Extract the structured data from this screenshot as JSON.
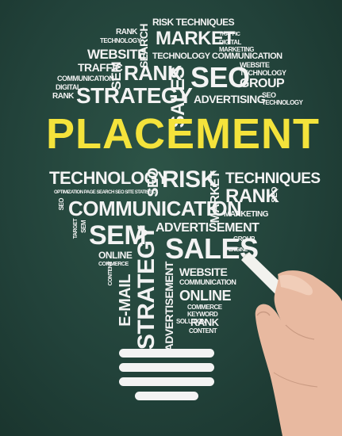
{
  "words": {
    "risk_techniques": "RISK TECHNIQUES",
    "rank_1": "RANK",
    "technology_1": "TECHNOLOGY",
    "search": "SEARCH",
    "market": "MARKET",
    "traffic_1": "TRAFFIC",
    "digital_1": "DIGITAL",
    "marketing_1": "MARKETING",
    "website_1": "WEBSITE",
    "technology_communication": "TECHNOLOGY COMMUNICATION",
    "traffic_2": "TRAFFIC",
    "communication_1": "COMMUNICATION",
    "sem_1": "SEM",
    "rank_2": "RANK",
    "sales_1": "SALES",
    "seo_1": "SEO",
    "website_2": "WEBSITE",
    "technology_2": "TECHNOLOGY",
    "group_1": "GROUP",
    "digital_2": "DIGITAL",
    "rank_3": "RANK",
    "strategy_1": "STRATEGY",
    "advertising": "ADVERTISING",
    "seo_2": "SEO",
    "technology_3": "TECHNOLOGY",
    "placement": "PLACEMENT",
    "technology_4": "TECHNOLOGY",
    "seo_3": "SEO",
    "risk": "RISK",
    "market_2": "MARKET",
    "techniques": "TECHNIQUES",
    "small_line": "OPTIMIZATION PAGE SEARCH SEO SITE STATISTICS",
    "rank_4": "RANK",
    "seo_4": "SEO",
    "seo_5": "SEO",
    "communication_2": "COMMUNICATION",
    "marketing_2": "MARKETING",
    "advertisement": "ADVERTISEMENT",
    "sem_2": "SEM",
    "strategy_2": "STRATEGY",
    "sales_2": "SALES",
    "group_2": "GROUP",
    "online_1": "ONLINE",
    "commerce_1": "COMMERCE",
    "website_3": "WEBSITE",
    "communication_3": "COMMUNICATION",
    "email": "E-MAIL",
    "content_1": "CONTENT",
    "advertisement_2": "ADVERTISEMENT",
    "online_2": "ONLINE",
    "commerce_2": "COMMERCE",
    "keyword": "KEYWORD",
    "solution": "SOLUTION",
    "rank_5": "RANK",
    "content_2": "CONTENT",
    "engine": "ENGINE",
    "target": "TARGET",
    "sem_small": "SEM"
  },
  "colors": {
    "chalkboard": "#22423a",
    "chalk": "#f3f3f3",
    "highlight": "#f4e33b",
    "skin": "#e8b9a0"
  }
}
